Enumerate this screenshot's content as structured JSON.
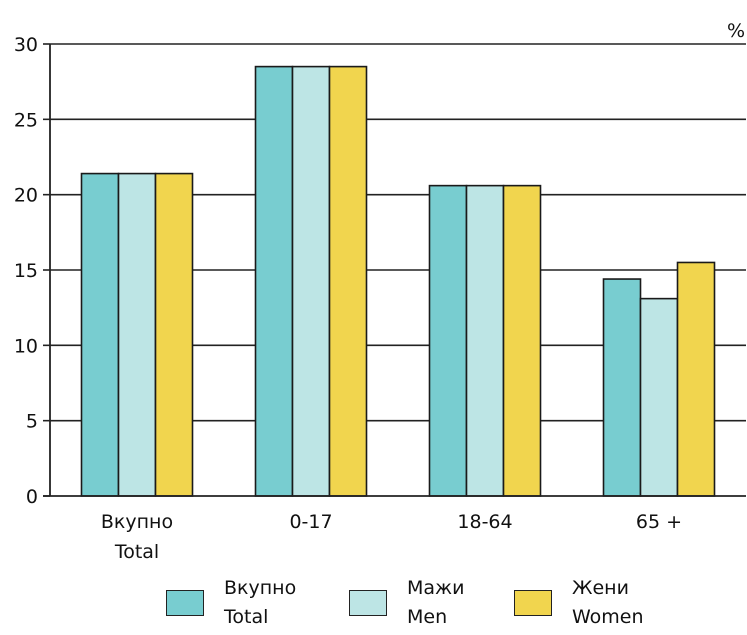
{
  "chart_data": {
    "type": "bar",
    "unit": "%",
    "categories": [
      {
        "line1": "Вкупно",
        "line2": "Total"
      },
      {
        "line1": "0-17",
        "line2": ""
      },
      {
        "line1": "18-64",
        "line2": ""
      },
      {
        "line1": "65 +",
        "line2": ""
      }
    ],
    "series": [
      {
        "name_mk": "Вкупно",
        "name_en": "Total",
        "color": "#78cdd0",
        "values": [
          21.4,
          28.5,
          20.6,
          14.4
        ]
      },
      {
        "name_mk": "Мажи",
        "name_en": "Men",
        "color": "#bde5e5",
        "values": [
          21.4,
          28.5,
          20.6,
          13.1
        ]
      },
      {
        "name_mk": "Жени",
        "name_en": "Women",
        "color": "#f1d54e",
        "values": [
          21.4,
          28.5,
          20.6,
          15.5
        ]
      }
    ],
    "ylim": [
      0,
      30
    ],
    "yticks": [
      0,
      5,
      10,
      15,
      20,
      25,
      30
    ],
    "grid": true,
    "legend_position": "bottom"
  }
}
